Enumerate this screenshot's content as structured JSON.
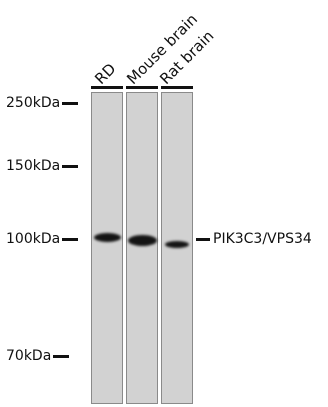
{
  "lanes": [
    {
      "label": "RD"
    },
    {
      "label": "Mouse brain"
    },
    {
      "label": "Rat brain"
    }
  ],
  "markers": [
    {
      "label": "250kDa"
    },
    {
      "label": "150kDa"
    },
    {
      "label": "100kDa"
    },
    {
      "label": "70kDa"
    }
  ],
  "target": {
    "label": "PIK3C3/VPS34"
  }
}
